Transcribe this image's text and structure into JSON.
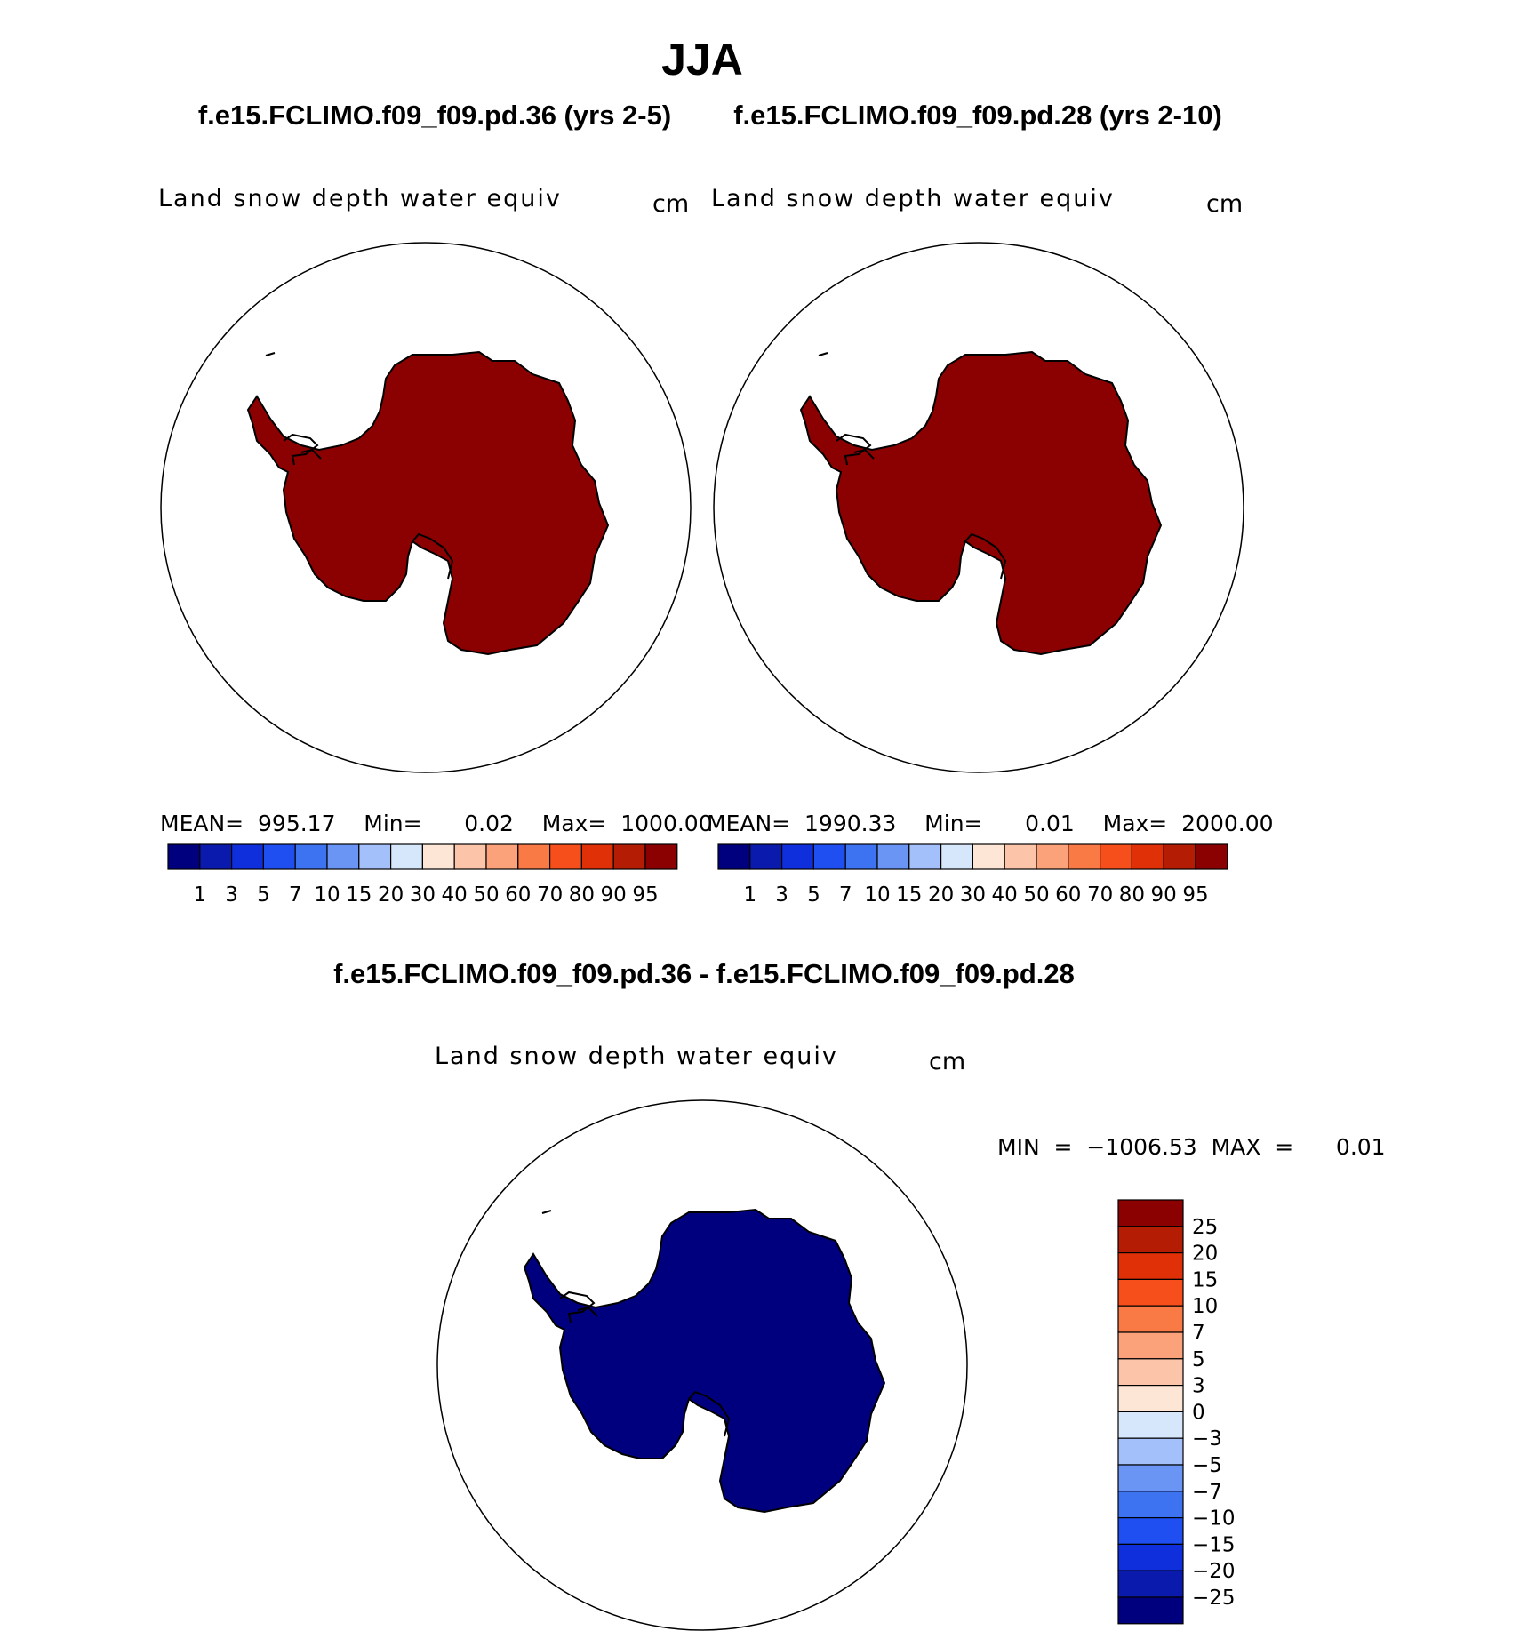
{
  "title": "JJA",
  "panels": [
    {
      "case_title": "f.e15.FCLIMO.f09_f09.pd.36 (yrs 2-5)",
      "variable": "Land snow depth water equiv",
      "units": "cm",
      "stats_text": "MEAN=  995.17    Min=      0.02    Max=  1000.00",
      "fill_color": "#8b0000"
    },
    {
      "case_title": "f.e15.FCLIMO.f09_f09.pd.28 (yrs 2-10)",
      "variable": "Land snow depth water equiv",
      "units": "cm",
      "stats_text": "MEAN=  1990.33    Min=      0.01    Max=  2000.00",
      "fill_color": "#8b0000"
    }
  ],
  "abs_colorbar": {
    "colors": [
      "#00007f",
      "#0a1aad",
      "#0f2fdc",
      "#1f4ff0",
      "#3d72f0",
      "#6a95f5",
      "#a4c0fa",
      "#d6e6fb",
      "#fde6d6",
      "#fcc4a8",
      "#fba27a",
      "#fa7a46",
      "#f64f1c",
      "#e03008",
      "#b41c04",
      "#8b0000"
    ],
    "labels": [
      "1",
      "3",
      "5",
      "7",
      "10",
      "15",
      "20",
      "30",
      "40",
      "50",
      "60",
      "70",
      "80",
      "90",
      "95"
    ]
  },
  "diff": {
    "title": "f.e15.FCLIMO.f09_f09.pd.36 - f.e15.FCLIMO.f09_f09.pd.28",
    "variable": "Land snow depth water equiv",
    "units": "cm",
    "minmax_text": "MIN  =  −1006.53  MAX  =      0.01",
    "fill_color": "#00007f",
    "colorbar": {
      "colors": [
        "#8b0000",
        "#b41c04",
        "#e03008",
        "#f64f1c",
        "#fa7a46",
        "#fba27a",
        "#fcc4a8",
        "#fde6d6",
        "#d6e6fb",
        "#a4c0fa",
        "#6a95f5",
        "#3d72f0",
        "#1f4ff0",
        "#0f2fdc",
        "#0a1aad",
        "#00007f"
      ],
      "labels": [
        "25",
        "20",
        "15",
        "10",
        "7",
        "5",
        "3",
        "0",
        "−3",
        "−5",
        "−7",
        "−10",
        "−15",
        "−20",
        "−25"
      ]
    }
  }
}
